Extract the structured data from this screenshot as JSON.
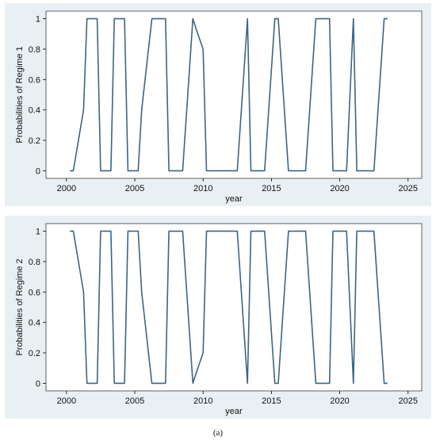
{
  "caption": "(a)",
  "chart_data": [
    {
      "type": "line",
      "xlabel": "year",
      "ylabel": "Probabilities of Regime 1",
      "xlim": [
        2000,
        2025
      ],
      "ylim": [
        0,
        1
      ],
      "x_ticks": [
        "2000",
        "2005",
        "2010",
        "2015",
        "2020",
        "2025"
      ],
      "y_ticks": [
        "0",
        "0.2",
        "0.4",
        "0.6",
        "0.8",
        "1"
      ],
      "grid": false,
      "line_color": "#3b6584",
      "panel_bg": "#e9f0f4",
      "plot_bg": "#ffffff",
      "x": [
        2000.25,
        2000.5,
        2001.25,
        2001.5,
        2002.25,
        2002.5,
        2003.25,
        2003.5,
        2004.25,
        2004.5,
        2005.25,
        2005.5,
        2006.25,
        2006.5,
        2007.25,
        2007.5,
        2008.25,
        2008.5,
        2009.25,
        2009.5,
        2010.0,
        2010.25,
        2012.25,
        2012.5,
        2013.25,
        2013.5,
        2014.25,
        2014.5,
        2015.25,
        2015.5,
        2016.25,
        2016.5,
        2017.25,
        2017.5,
        2018.25,
        2018.5,
        2019.25,
        2019.5,
        2020.25,
        2020.5,
        2021.0,
        2021.25,
        2021.5,
        2022.25,
        2022.5,
        2023.25,
        2023.5
      ],
      "y": [
        0,
        0,
        0.4,
        1,
        1,
        0,
        0,
        1,
        1,
        0,
        0,
        0.4,
        1,
        1,
        1,
        0,
        0,
        0,
        1,
        0.93,
        0.8,
        0,
        0,
        0,
        1,
        0,
        0,
        0,
        1,
        1,
        0,
        0,
        0,
        0,
        1,
        1,
        1,
        0,
        0,
        0,
        1,
        0,
        0,
        0,
        0,
        1,
        1
      ]
    },
    {
      "type": "line",
      "xlabel": "year",
      "ylabel": "Probabilities of Regime 2",
      "xlim": [
        2000,
        2025
      ],
      "ylim": [
        0,
        1
      ],
      "x_ticks": [
        "2000",
        "2005",
        "2010",
        "2015",
        "2020",
        "2025"
      ],
      "y_ticks": [
        "0",
        "0.2",
        "0.4",
        "0.6",
        "0.8",
        "1"
      ],
      "grid": false,
      "line_color": "#3b6584",
      "panel_bg": "#e9f0f4",
      "plot_bg": "#ffffff",
      "x": [
        2000.25,
        2000.5,
        2001.25,
        2001.5,
        2002.25,
        2002.5,
        2003.25,
        2003.5,
        2004.25,
        2004.5,
        2005.25,
        2005.5,
        2006.25,
        2006.5,
        2007.25,
        2007.5,
        2008.25,
        2008.5,
        2009.25,
        2009.5,
        2010.0,
        2010.25,
        2012.25,
        2012.5,
        2013.25,
        2013.5,
        2014.25,
        2014.5,
        2015.25,
        2015.5,
        2016.25,
        2016.5,
        2017.25,
        2017.5,
        2018.25,
        2018.5,
        2019.25,
        2019.5,
        2020.25,
        2020.5,
        2021.0,
        2021.25,
        2021.5,
        2022.25,
        2022.5,
        2023.25,
        2023.5
      ],
      "y": [
        1,
        1,
        0.6,
        0,
        0,
        1,
        1,
        0,
        0,
        1,
        1,
        0.6,
        0,
        0,
        0,
        1,
        1,
        1,
        0,
        0.07,
        0.2,
        1,
        1,
        1,
        0,
        1,
        1,
        1,
        0,
        0,
        1,
        1,
        1,
        1,
        0,
        0,
        0,
        1,
        1,
        1,
        0,
        1,
        1,
        1,
        1,
        0,
        0
      ]
    }
  ]
}
